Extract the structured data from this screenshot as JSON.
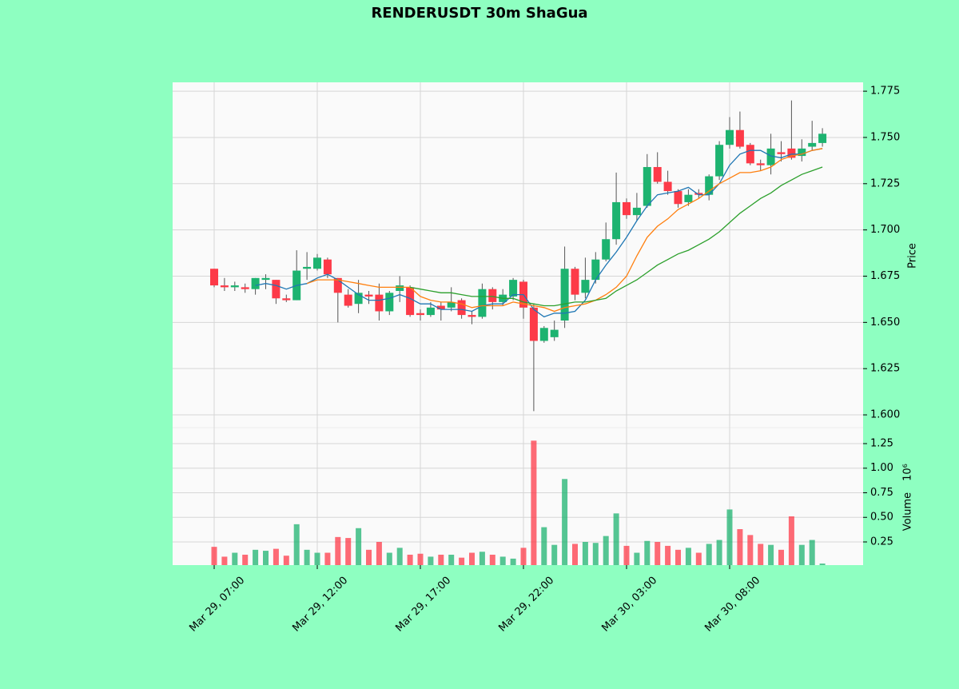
{
  "chart_data": {
    "type": "candlestick",
    "title": "RENDERUSDT 30m ShaGua",
    "categories": [
      "Mar 29, 07:00",
      null,
      null,
      null,
      null,
      null,
      null,
      null,
      null,
      null,
      "Mar 29, 12:00",
      null,
      null,
      null,
      null,
      null,
      null,
      null,
      null,
      null,
      "Mar 29, 17:00",
      null,
      null,
      null,
      null,
      null,
      null,
      null,
      null,
      null,
      "Mar 29, 22:00",
      null,
      null,
      null,
      null,
      null,
      null,
      null,
      null,
      null,
      "Mar 30, 03:00",
      null,
      null,
      null,
      null,
      null,
      null,
      null,
      null,
      null,
      "Mar 30, 08:00",
      null,
      null,
      null,
      null,
      null,
      null,
      null,
      null,
      null
    ],
    "open": [
      1.679,
      1.67,
      1.669,
      1.669,
      1.668,
      1.673,
      1.673,
      1.663,
      1.662,
      1.679,
      1.679,
      1.684,
      1.674,
      1.665,
      1.66,
      1.665,
      1.665,
      1.656,
      1.667,
      1.669,
      1.655,
      1.654,
      1.659,
      1.658,
      1.662,
      1.654,
      1.653,
      1.668,
      1.661,
      1.664,
      1.672,
      1.658,
      1.64,
      1.642,
      1.651,
      1.679,
      1.666,
      1.673,
      1.684,
      1.695,
      1.715,
      1.708,
      1.713,
      1.734,
      1.726,
      1.721,
      1.715,
      1.72,
      1.719,
      1.729,
      1.746,
      1.754,
      1.746,
      1.736,
      1.735,
      1.742,
      1.744,
      1.74,
      1.745,
      1.747
    ],
    "high": [
      1.679,
      1.674,
      1.672,
      1.671,
      1.674,
      1.676,
      1.673,
      1.665,
      1.689,
      1.688,
      1.687,
      1.685,
      1.674,
      1.668,
      1.673,
      1.667,
      1.671,
      1.667,
      1.675,
      1.67,
      1.657,
      1.661,
      1.661,
      1.669,
      1.663,
      1.656,
      1.671,
      1.669,
      1.668,
      1.674,
      1.673,
      1.66,
      1.648,
      1.651,
      1.691,
      1.68,
      1.685,
      1.688,
      1.704,
      1.731,
      1.717,
      1.72,
      1.741,
      1.742,
      1.732,
      1.722,
      1.722,
      1.722,
      1.73,
      1.748,
      1.761,
      1.764,
      1.747,
      1.738,
      1.752,
      1.748,
      1.77,
      1.749,
      1.759,
      1.755
    ],
    "low": [
      1.669,
      1.667,
      1.667,
      1.666,
      1.665,
      1.668,
      1.66,
      1.661,
      1.662,
      1.673,
      1.678,
      1.674,
      1.65,
      1.658,
      1.655,
      1.66,
      1.651,
      1.654,
      1.661,
      1.653,
      1.651,
      1.653,
      1.651,
      1.656,
      1.652,
      1.649,
      1.652,
      1.657,
      1.659,
      1.662,
      1.652,
      1.602,
      1.639,
      1.64,
      1.647,
      1.662,
      1.663,
      1.671,
      1.683,
      1.692,
      1.706,
      1.705,
      1.712,
      1.725,
      1.719,
      1.712,
      1.713,
      1.717,
      1.716,
      1.727,
      1.744,
      1.744,
      1.735,
      1.732,
      1.73,
      1.737,
      1.738,
      1.737,
      1.743,
      1.745
    ],
    "close": [
      1.67,
      1.669,
      1.67,
      1.668,
      1.674,
      1.674,
      1.663,
      1.662,
      1.678,
      1.68,
      1.685,
      1.676,
      1.666,
      1.659,
      1.666,
      1.664,
      1.656,
      1.666,
      1.67,
      1.654,
      1.654,
      1.658,
      1.657,
      1.661,
      1.654,
      1.653,
      1.668,
      1.661,
      1.665,
      1.673,
      1.658,
      1.64,
      1.647,
      1.646,
      1.679,
      1.665,
      1.673,
      1.684,
      1.695,
      1.715,
      1.708,
      1.712,
      1.734,
      1.726,
      1.721,
      1.714,
      1.719,
      1.719,
      1.729,
      1.746,
      1.754,
      1.745,
      1.736,
      1.735,
      1.744,
      1.741,
      1.739,
      1.744,
      1.747,
      1.752
    ],
    "up_color": "#1db370",
    "down_color": "#fd3a48",
    "ylabel": "Price",
    "ylim": [
      1.5931,
      1.7798
    ],
    "yticks": [
      {
        "value": 1.6,
        "label": "1.600"
      },
      1.625,
      {
        "value": 1.65,
        "label": "1.650"
      },
      1.675,
      {
        "value": 1.7,
        "label": "1.700"
      },
      1.725,
      {
        "value": 1.75,
        "label": "1.750"
      },
      1.775
    ],
    "grid": true,
    "moving_averages": [
      {
        "color": "#1f77b4",
        "values": [
          null,
          null,
          null,
          null,
          1.67,
          1.671,
          1.67,
          1.668,
          1.67,
          1.671,
          1.674,
          1.676,
          1.673,
          1.669,
          1.665,
          1.662,
          1.662,
          1.663,
          1.665,
          1.663,
          1.66,
          1.66,
          1.657,
          1.657,
          1.657,
          1.656,
          1.659,
          1.66,
          1.66,
          1.665,
          1.665,
          1.657,
          1.653,
          1.655,
          1.655,
          1.656,
          1.662,
          1.673,
          1.681,
          1.688,
          1.696,
          1.705,
          1.713,
          1.719,
          1.72,
          1.721,
          1.723,
          1.719,
          1.719,
          1.725,
          1.735,
          1.741,
          1.743,
          1.743,
          1.74,
          1.739,
          1.741,
          1.741,
          1.743,
          1.744
        ]
      },
      {
        "color": "#ff7f0e",
        "values": [
          null,
          null,
          null,
          null,
          null,
          null,
          null,
          null,
          null,
          1.671,
          1.673,
          1.673,
          1.673,
          1.672,
          1.671,
          1.67,
          1.669,
          1.669,
          1.669,
          1.669,
          1.664,
          1.662,
          1.661,
          1.661,
          1.66,
          1.658,
          1.659,
          1.659,
          1.659,
          1.661,
          1.66,
          1.659,
          1.658,
          1.656,
          1.658,
          1.659,
          1.66,
          1.662,
          1.665,
          1.669,
          1.675,
          1.686,
          1.696,
          1.702,
          1.706,
          1.711,
          1.714,
          1.717,
          1.721,
          1.725,
          1.728,
          1.731,
          1.731,
          1.732,
          1.734,
          1.738,
          1.74,
          1.741,
          1.743,
          1.744
        ]
      },
      {
        "color": "#2ca02c",
        "values": [
          null,
          null,
          null,
          null,
          null,
          null,
          null,
          null,
          null,
          null,
          null,
          null,
          null,
          null,
          null,
          null,
          null,
          null,
          null,
          1.669,
          1.668,
          1.667,
          1.666,
          1.666,
          1.665,
          1.664,
          1.664,
          1.664,
          1.663,
          1.663,
          1.661,
          1.66,
          1.659,
          1.659,
          1.66,
          1.661,
          1.661,
          1.662,
          1.663,
          1.667,
          1.67,
          1.673,
          1.677,
          1.681,
          1.684,
          1.687,
          1.689,
          1.692,
          1.695,
          1.699,
          1.704,
          1.709,
          1.713,
          1.717,
          1.72,
          1.724,
          1.727,
          1.73,
          1.732,
          1.734
        ]
      }
    ],
    "volume": {
      "ylabel": "Volume",
      "scale_label": "10⁶",
      "values": [
        0.2,
        0.1,
        0.14,
        0.12,
        0.17,
        0.16,
        0.18,
        0.11,
        0.43,
        0.17,
        0.14,
        0.14,
        0.3,
        0.29,
        0.39,
        0.17,
        0.25,
        0.14,
        0.19,
        0.12,
        0.13,
        0.1,
        0.12,
        0.12,
        0.09,
        0.14,
        0.15,
        0.12,
        0.1,
        0.08,
        0.19,
        1.28,
        0.4,
        0.22,
        0.89,
        0.23,
        0.25,
        0.24,
        0.31,
        0.54,
        0.21,
        0.14,
        0.26,
        0.25,
        0.21,
        0.17,
        0.19,
        0.14,
        0.23,
        0.27,
        0.58,
        0.38,
        0.32,
        0.23,
        0.22,
        0.17,
        0.51,
        0.22,
        0.27,
        0.03
      ],
      "ylim": [
        0.0142,
        1.4126
      ],
      "yticks": [
        0.25,
        {
          "value": 0.5,
          "label": "0.50"
        },
        0.75,
        {
          "value": 1,
          "label": "1.00"
        },
        1.25
      ]
    }
  }
}
